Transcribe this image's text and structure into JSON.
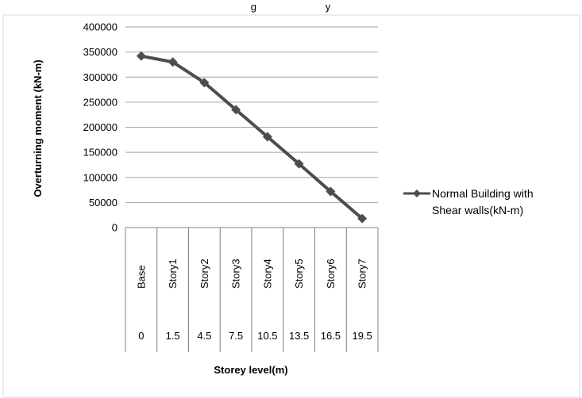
{
  "top_caption": "g                        y",
  "chart_data": {
    "type": "line",
    "title": "",
    "xlabel": "Storey level(m)",
    "ylabel": "Overturning moment (kN-m)",
    "ylim": [
      0,
      400000
    ],
    "ytick_step": 50000,
    "y_ticks": [
      "0",
      "50000",
      "100000",
      "150000",
      "200000",
      "250000",
      "300000",
      "350000",
      "400000"
    ],
    "categories": [
      "Base",
      "Story1",
      "Story2",
      "Story3",
      "Story4",
      "Story5",
      "Story6",
      "Story7"
    ],
    "x_levels": [
      "0",
      "1.5",
      "4.5",
      "7.5",
      "10.5",
      "13.5",
      "16.5",
      "19.5"
    ],
    "grid": true,
    "legend_position": "right",
    "series": [
      {
        "name": "Normal Building with Shear walls(kN-m)",
        "legend_lines": [
          "Normal Building with",
          "Shear walls(kN-m)"
        ],
        "color": "#4d4d4d",
        "marker": "diamond",
        "values": [
          342000,
          330000,
          289000,
          235000,
          181000,
          127000,
          72000,
          18000
        ]
      }
    ]
  }
}
